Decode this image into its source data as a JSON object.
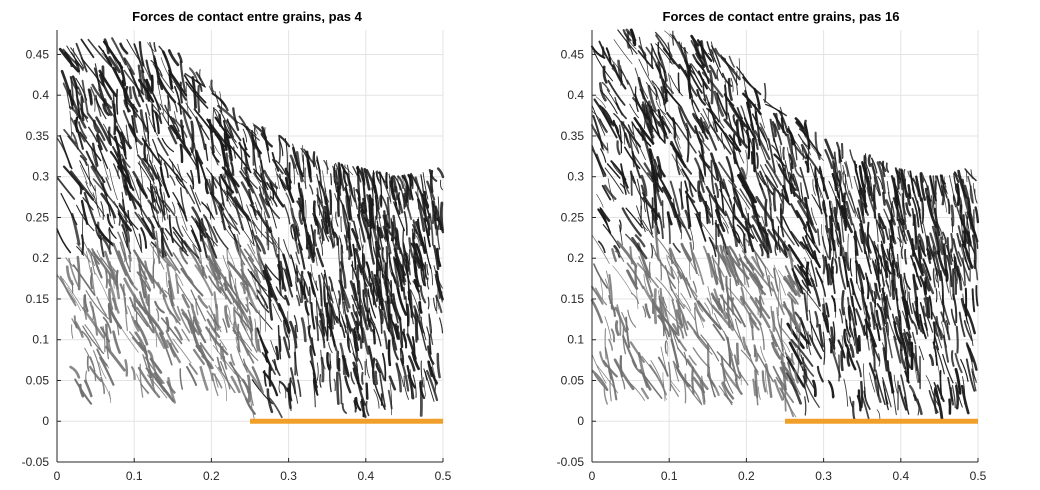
{
  "chart_data": [
    {
      "type": "line",
      "title": "Forces de contact entre grains, pas 4",
      "xlabel": "",
      "ylabel": "",
      "xlim": [
        0,
        0.5
      ],
      "ylim": [
        -0.05,
        0.48
      ],
      "xticks": [
        0,
        0.1,
        0.2,
        0.3,
        0.4,
        0.5
      ],
      "xtick_labels": [
        "0",
        "0.1",
        "0.2",
        "0.3",
        "0.4",
        "0.5"
      ],
      "yticks": [
        -0.05,
        0,
        0.05,
        0.1,
        0.15,
        0.2,
        0.25,
        0.3,
        0.35,
        0.4,
        0.45
      ],
      "ytick_labels": [
        "-0.05",
        "0",
        "0.05",
        "0.1",
        "0.15",
        "0.2",
        "0.25",
        "0.3",
        "0.35",
        "0.4",
        "0.45"
      ],
      "grid": true,
      "step": 4,
      "base": {
        "x": [
          0.25,
          0.5
        ],
        "y": 0,
        "color": "#f0a02a"
      },
      "force_chains": {
        "color": "#1a1a1a",
        "shade_color": "#707070",
        "density_front": [
          [
            0,
            0.43
          ],
          [
            0.05,
            0.46
          ],
          [
            0.1,
            0.46
          ],
          [
            0.15,
            0.45
          ],
          [
            0.2,
            0.41
          ],
          [
            0.25,
            0.36
          ],
          [
            0.3,
            0.34
          ],
          [
            0.35,
            0.31
          ],
          [
            0.4,
            0.3
          ],
          [
            0.45,
            0.29
          ],
          [
            0.5,
            0.3
          ]
        ],
        "base_spread_left": 0.17
      }
    },
    {
      "type": "line",
      "title": "Forces de contact entre grains, pas 16",
      "xlabel": "",
      "ylabel": "",
      "xlim": [
        0,
        0.5
      ],
      "ylim": [
        -0.05,
        0.48
      ],
      "xticks": [
        0,
        0.1,
        0.2,
        0.3,
        0.4,
        0.5
      ],
      "xtick_labels": [
        "0",
        "0.1",
        "0.2",
        "0.3",
        "0.4",
        "0.5"
      ],
      "yticks": [
        -0.05,
        0,
        0.05,
        0.1,
        0.15,
        0.2,
        0.25,
        0.3,
        0.35,
        0.4,
        0.45
      ],
      "ytick_labels": [
        "-0.05",
        "0",
        "0.05",
        "0.1",
        "0.15",
        "0.2",
        "0.25",
        "0.3",
        "0.35",
        "0.4",
        "0.45"
      ],
      "grid": true,
      "step": 16,
      "base": {
        "x": [
          0.25,
          0.5
        ],
        "y": 0,
        "color": "#f0a02a"
      },
      "force_chains": {
        "color": "#1a1a1a",
        "shade_color": "#707070",
        "density_front": [
          [
            0,
            0.44
          ],
          [
            0.05,
            0.47
          ],
          [
            0.1,
            0.47
          ],
          [
            0.15,
            0.46
          ],
          [
            0.2,
            0.43
          ],
          [
            0.25,
            0.38
          ],
          [
            0.3,
            0.34
          ],
          [
            0.35,
            0.32
          ],
          [
            0.4,
            0.3
          ],
          [
            0.45,
            0.29
          ],
          [
            0.5,
            0.3
          ]
        ],
        "base_spread_left": 0.12
      }
    }
  ]
}
